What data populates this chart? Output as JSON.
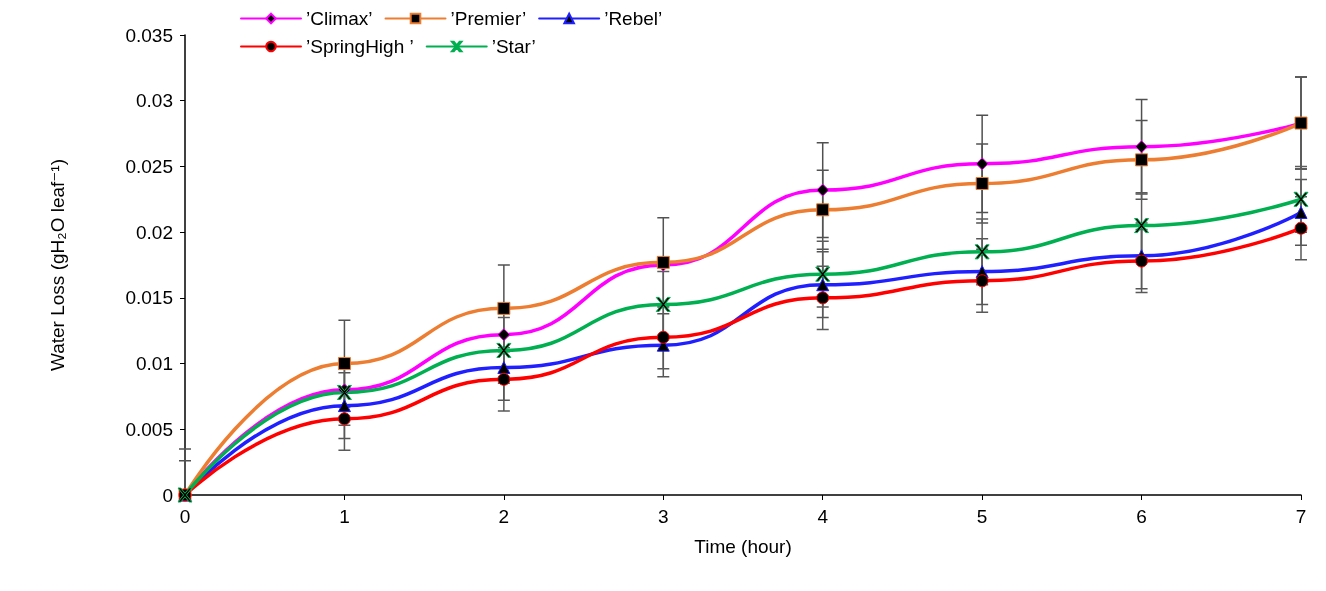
{
  "chart_data": {
    "type": "line",
    "xlabel": "Time (hour)",
    "ylabel": "Water Loss (gH₂O leaf⁻¹)",
    "x": [
      0,
      1,
      2,
      3,
      4,
      5,
      6,
      7
    ],
    "xlim": [
      0,
      7
    ],
    "xticks": [
      0,
      1,
      2,
      3,
      4,
      5,
      6,
      7
    ],
    "ylim": [
      0,
      0.035
    ],
    "yticks": [
      0,
      0.005,
      0.01,
      0.015,
      0.02,
      0.025,
      0.03,
      0.035
    ],
    "grid": false,
    "legend": "top",
    "line_style": "solid",
    "series": [
      {
        "name": "’Climax’",
        "color": "#ff00ff",
        "marker": "diamond",
        "values": [
          0,
          0.008,
          0.0122,
          0.0175,
          0.0232,
          0.0252,
          0.0265,
          0.0283
        ],
        "errors": [
          [
            0,
            0.0026
          ],
          null,
          null,
          null,
          0.0036,
          0.0037,
          0.0036,
          0.0035
        ]
      },
      {
        "name": "’Premier’",
        "color": "#ed7d31",
        "marker": "square",
        "values": [
          0,
          0.01,
          0.0142,
          0.0177,
          0.0217,
          0.0237,
          0.0255,
          0.0283
        ],
        "errors": [
          [
            0,
            0.0035
          ],
          0.0033,
          0.0033,
          0.0034,
          0.003,
          0.003,
          0.003,
          0.0035
        ]
      },
      {
        "name": "’Rebel’",
        "color": "#1f1fff",
        "marker": "triangle",
        "values": [
          0,
          0.0068,
          0.0097,
          0.0114,
          0.016,
          0.017,
          0.0182,
          0.0215
        ],
        "errors": [
          null,
          0.0025,
          0.0025,
          0.0024,
          0.0025,
          0.0025,
          0.0025,
          0.0025
        ]
      },
      {
        "name": "’SpringHigh ’",
        "color": "#ff0000",
        "marker": "circle",
        "values": [
          0,
          0.0058,
          0.0088,
          0.012,
          0.015,
          0.0163,
          0.0178,
          0.0203
        ],
        "errors": [
          null,
          0.0024,
          0.0024,
          0.0024,
          0.0024,
          0.0024,
          0.0024,
          0.0024
        ]
      },
      {
        "name": "’Star’",
        "color": "#00b050",
        "marker": "cross",
        "values": [
          0,
          0.0078,
          0.011,
          0.0145,
          0.0168,
          0.0185,
          0.0205,
          0.0225
        ],
        "errors": [
          null,
          0.0025,
          0.0025,
          0.0025,
          0.0025,
          0.0025,
          0.0025,
          0.0025
        ]
      }
    ]
  }
}
